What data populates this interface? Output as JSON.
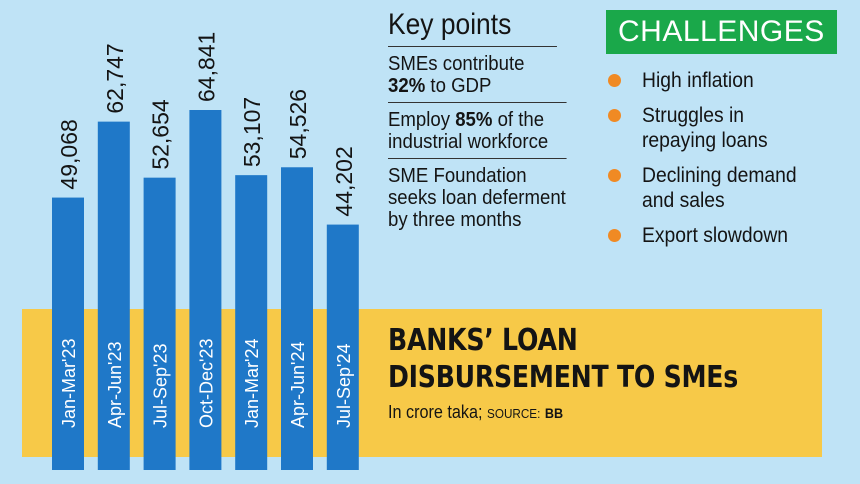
{
  "chart_data": {
    "type": "bar",
    "categories": [
      "Jan-Mar'23",
      "Apr-Jun'23",
      "Jul-Sep'23",
      "Oct-Dec'23",
      "Jan-Mar'24",
      "Apr-Jun'24",
      "Jul-Sep'24"
    ],
    "values": [
      49068,
      62747,
      52654,
      64841,
      53107,
      54526,
      44202
    ],
    "value_labels": [
      "49,068",
      "62,747",
      "52,654",
      "64,841",
      "53,107",
      "54,526",
      "44,202"
    ],
    "title_lines": [
      "BANKS’ LOAN",
      "DISBURSEMENT TO SMEs"
    ],
    "unit": "In crore taka;",
    "source_label": "SOURCE:",
    "source": "BB",
    "bar_color": "#1f78c8",
    "grid": false,
    "legend": "none"
  },
  "key_points": {
    "title": "Key points",
    "items": [
      {
        "lines": [
          {
            "pre": "SMEs contribute"
          },
          {
            "bold": "32%",
            "post": " to GDP"
          }
        ]
      },
      {
        "lines": [
          {
            "pre": "Employ ",
            "bold": "85%",
            "post": " of the"
          },
          {
            "pre": "industrial workforce"
          }
        ]
      },
      {
        "lines": [
          {
            "pre": "SME Foundation"
          },
          {
            "pre": "seeks loan deferment"
          },
          {
            "pre": "by three months"
          }
        ]
      }
    ]
  },
  "challenges": {
    "title": "CHALLENGES",
    "accent": "#1aa84a",
    "bullet_color": "#f08a24",
    "items": [
      [
        "High inflation"
      ],
      [
        "Struggles in",
        "repaying loans"
      ],
      [
        "Declining demand",
        "and sales"
      ],
      [
        "Export slowdown"
      ]
    ]
  }
}
